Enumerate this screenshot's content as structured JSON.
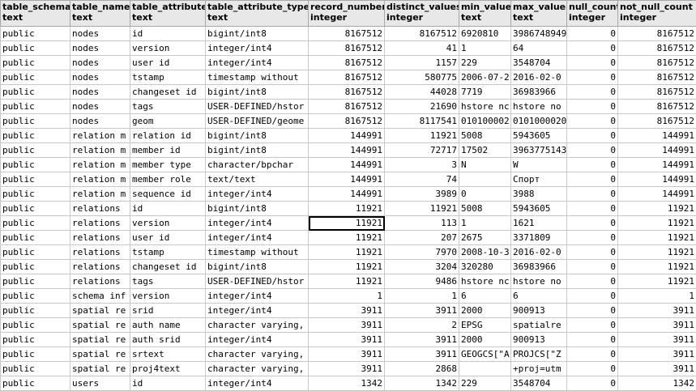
{
  "columns": [
    {
      "name": "table_schema",
      "type": "text",
      "align": "left"
    },
    {
      "name": "table_name",
      "type": "text",
      "align": "left"
    },
    {
      "name": "table_attribute",
      "type": "text",
      "align": "left"
    },
    {
      "name": "table_attribute_type",
      "type": "text",
      "align": "left"
    },
    {
      "name": "record_number",
      "type": "integer",
      "align": "right"
    },
    {
      "name": "distinct_values",
      "type": "integer",
      "align": "right"
    },
    {
      "name": "min_value",
      "type": "text",
      "align": "left"
    },
    {
      "name": "max_value",
      "type": "text",
      "align": "left"
    },
    {
      "name": "null_count",
      "type": "integer",
      "align": "right"
    },
    {
      "name": "not_null_count",
      "type": "integer",
      "align": "right"
    }
  ],
  "rows": [
    [
      "public",
      "nodes",
      "id",
      "bigint/int8",
      "8167512",
      "8167512",
      "6920810",
      "3986748949",
      "0",
      "8167512"
    ],
    [
      "public",
      "nodes",
      "version",
      "integer/int4",
      "8167512",
      "41",
      "1",
      "64",
      "0",
      "8167512"
    ],
    [
      "public",
      "nodes",
      "user id",
      "integer/int4",
      "8167512",
      "1157",
      "229",
      "3548704",
      "0",
      "8167512"
    ],
    [
      "public",
      "nodes",
      "tstamp",
      "timestamp without",
      "8167512",
      "580775",
      "2006-07-2",
      "2016-02-0",
      "0",
      "8167512"
    ],
    [
      "public",
      "nodes",
      "changeset id",
      "bigint/int8",
      "8167512",
      "44028",
      "7719",
      "36983966",
      "0",
      "8167512"
    ],
    [
      "public",
      "nodes",
      "tags",
      "USER-DEFINED/hstor",
      "8167512",
      "21690",
      "hstore nc",
      "hstore no",
      "0",
      "8167512"
    ],
    [
      "public",
      "nodes",
      "geom",
      "USER-DEFINED/geome",
      "8167512",
      "8117541",
      "010100002",
      "0101000020",
      "0",
      "8167512"
    ],
    [
      "public",
      "relation m",
      "relation id",
      "bigint/int8",
      "144991",
      "11921",
      "5008",
      "5943605",
      "0",
      "144991"
    ],
    [
      "public",
      "relation m",
      "member id",
      "bigint/int8",
      "144991",
      "72717",
      "17502",
      "3963775143",
      "0",
      "144991"
    ],
    [
      "public",
      "relation m",
      "member type",
      "character/bpchar",
      "144991",
      "3",
      "N",
      "W",
      "0",
      "144991"
    ],
    [
      "public",
      "relation m",
      "member role",
      "text/text",
      "144991",
      "74",
      "",
      "Спорт",
      "0",
      "144991"
    ],
    [
      "public",
      "relation m",
      "sequence id",
      "integer/int4",
      "144991",
      "3989",
      "0",
      "3988",
      "0",
      "144991"
    ],
    [
      "public",
      "relations",
      "id",
      "bigint/int8",
      "11921",
      "11921",
      "5008",
      "5943605",
      "0",
      "11921"
    ],
    [
      "public",
      "relations",
      "version",
      "integer/int4",
      "11921",
      "113",
      "1",
      "1621",
      "0",
      "11921"
    ],
    [
      "public",
      "relations",
      "user id",
      "integer/int4",
      "11921",
      "207",
      "2675",
      "3371809",
      "0",
      "11921"
    ],
    [
      "public",
      "relations",
      "tstamp",
      "timestamp without",
      "11921",
      "7970",
      "2008-10-3",
      "2016-02-0",
      "0",
      "11921"
    ],
    [
      "public",
      "relations",
      "changeset id",
      "bigint/int8",
      "11921",
      "3204",
      "320280",
      "36983966",
      "0",
      "11921"
    ],
    [
      "public",
      "relations",
      "tags",
      "USER-DEFINED/hstor",
      "11921",
      "9486",
      "hstore nc",
      "hstore no",
      "0",
      "11921"
    ],
    [
      "public",
      "schema inf",
      "version",
      "integer/int4",
      "1",
      "1",
      "6",
      "6",
      "0",
      "1"
    ],
    [
      "public",
      "spatial re",
      "srid",
      "integer/int4",
      "3911",
      "3911",
      "2000",
      "900913",
      "0",
      "3911"
    ],
    [
      "public",
      "spatial re",
      "auth name",
      "character varying,",
      "3911",
      "2",
      "EPSG",
      "spatialre",
      "0",
      "3911"
    ],
    [
      "public",
      "spatial re",
      "auth srid",
      "integer/int4",
      "3911",
      "3911",
      "2000",
      "900913",
      "0",
      "3911"
    ],
    [
      "public",
      "spatial re",
      "srtext",
      "character varying,",
      "3911",
      "3911",
      "GEOGCS[\"A",
      "PROJCS[\"Z",
      "0",
      "3911"
    ],
    [
      "public",
      "spatial re",
      "proj4text",
      "character varying,",
      "3911",
      "2868",
      "",
      "+proj=utm",
      "0",
      "3911"
    ],
    [
      "public",
      "users",
      "id",
      "integer/int4",
      "1342",
      "1342",
      "229",
      "3548704",
      "0",
      "1342"
    ]
  ],
  "selected_cell": {
    "row": 13,
    "col": 4
  }
}
